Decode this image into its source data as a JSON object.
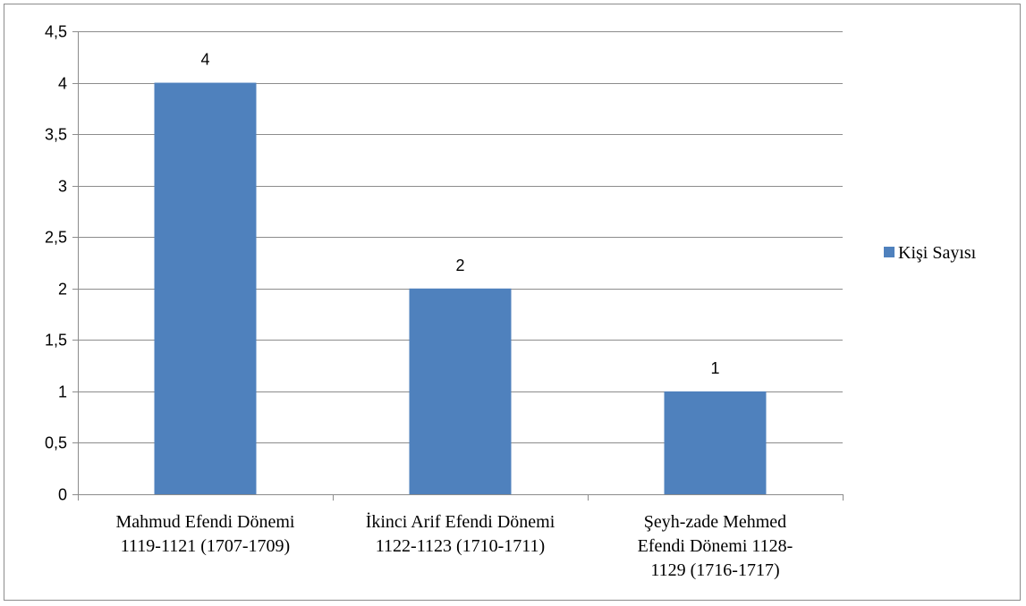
{
  "chart_data": {
    "type": "bar",
    "categories": [
      [
        "Mahmud Efendi Dönemi",
        "1119-1121 (1707-1709)"
      ],
      [
        "İkinci Arif Efendi Dönemi",
        "1122-1123 (1710-1711)"
      ],
      [
        "Şeyh-zade Mehmed",
        "Efendi Dönemi 1128-",
        "1129 (1716-1717)"
      ]
    ],
    "series": [
      {
        "name": "Kişi Sayısı",
        "values": [
          4,
          2,
          1
        ],
        "value_labels": [
          "4",
          "2",
          "1"
        ],
        "color": "#4f81bd"
      }
    ],
    "ylim": [
      0,
      4.5
    ],
    "yticks": [
      0,
      0.5,
      1,
      1.5,
      2,
      2.5,
      3,
      3.5,
      4,
      4.5
    ],
    "ytick_labels": [
      "0",
      "0,5",
      "1",
      "1,5",
      "2",
      "2,5",
      "3",
      "3,5",
      "4",
      "4,5"
    ],
    "grid": true,
    "legend": "right",
    "title": "",
    "xlabel": "",
    "ylabel": ""
  },
  "colors": {
    "gridline": "#8c8c8c",
    "axis": "#8c8c8c",
    "frame": "#8c8c8c"
  }
}
